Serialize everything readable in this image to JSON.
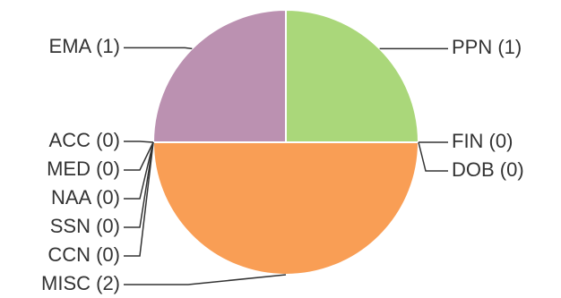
{
  "chart_data": {
    "type": "pie",
    "title": "",
    "slices": [
      {
        "label": "PPN (1)",
        "value": 1,
        "color": "#aad77a"
      },
      {
        "label": "FIN (0)",
        "value": 0,
        "color": "#7fb0d8"
      },
      {
        "label": "DOB (0)",
        "value": 0,
        "color": "#e5d56b"
      },
      {
        "label": "MISC (2)",
        "value": 2,
        "color": "#f99e55"
      },
      {
        "label": "CCN (0)",
        "value": 0,
        "color": "#d97070"
      },
      {
        "label": "SSN (0)",
        "value": 0,
        "color": "#7fc9c4"
      },
      {
        "label": "NAA (0)",
        "value": 0,
        "color": "#c9a26b"
      },
      {
        "label": "MED (0)",
        "value": 0,
        "color": "#9fa3d6"
      },
      {
        "label": "ACC (0)",
        "value": 0,
        "color": "#d6a6c0"
      },
      {
        "label": "EMA (1)",
        "value": 1,
        "color": "#bb91b1"
      }
    ],
    "legend": "none"
  }
}
